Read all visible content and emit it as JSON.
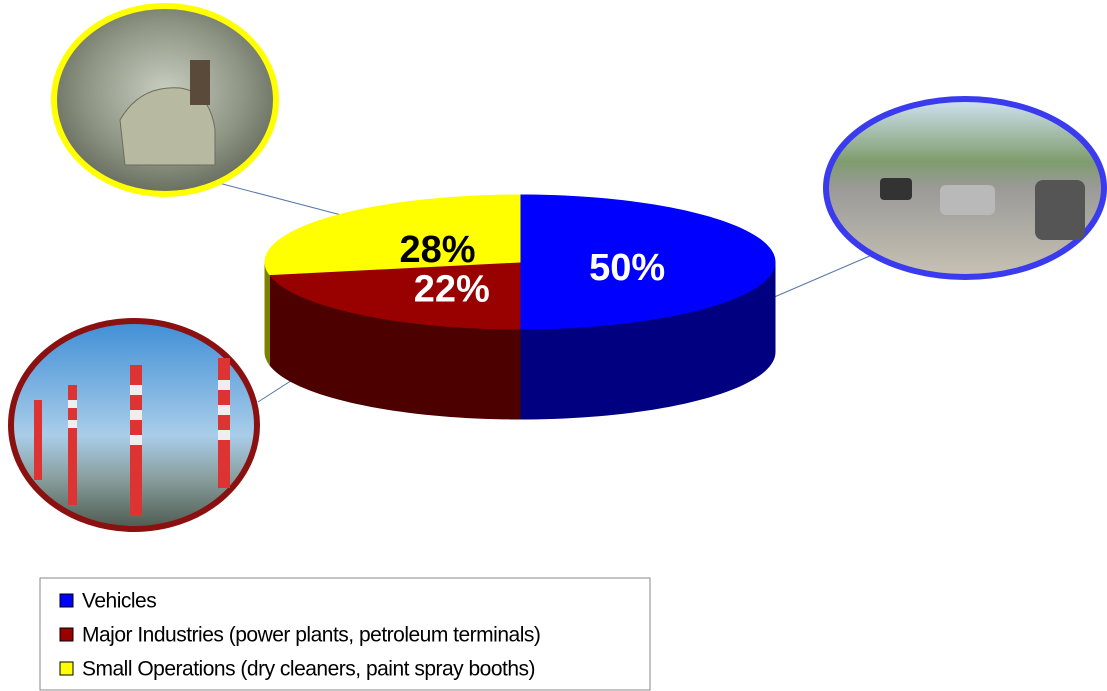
{
  "chart_data": {
    "type": "pie",
    "categories": [
      "Vehicles",
      "Major Industries (power plants, petroleum terminals)",
      "Small Operations (dry cleaners, paint spray booths)"
    ],
    "values": [
      50,
      22,
      28
    ],
    "value_labels": [
      "50%",
      "22%",
      "28%"
    ],
    "colors": [
      "#0000ff",
      "#990000",
      "#ffff00"
    ],
    "legend": true
  }
}
